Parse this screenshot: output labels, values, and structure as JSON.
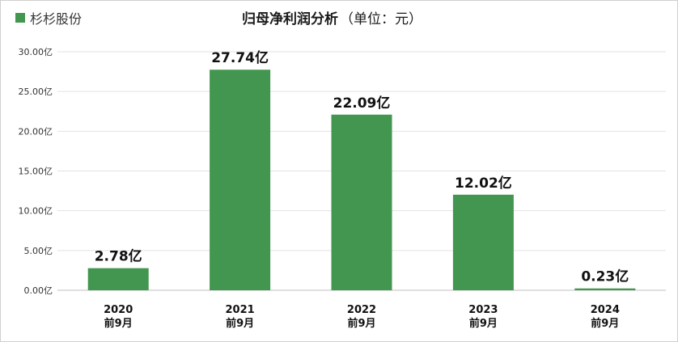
{
  "legend": {
    "label": "杉杉股份",
    "color": "#43964f"
  },
  "title": {
    "main": "归母净利润分析",
    "unit": "（单位：元）"
  },
  "chart_data": {
    "type": "bar",
    "title": "归母净利润分析（单位：元）",
    "categories": [
      "2020 前9月",
      "2021 前9月",
      "2022 前9月",
      "2023 前9月",
      "2024 前9月"
    ],
    "category_lines": [
      [
        "2020",
        "前9月"
      ],
      [
        "2021",
        "前9月"
      ],
      [
        "2022",
        "前9月"
      ],
      [
        "2023",
        "前9月"
      ],
      [
        "2024",
        "前9月"
      ]
    ],
    "series": [
      {
        "name": "杉杉股份",
        "values": [
          2.78,
          27.74,
          22.09,
          12.02,
          0.23
        ],
        "color": "#43964f"
      }
    ],
    "data_labels": [
      "2.78亿",
      "27.74亿",
      "22.09亿",
      "12.02亿",
      "0.23亿"
    ],
    "ylim": [
      0,
      30
    ],
    "yticks": [
      0,
      5,
      10,
      15,
      20,
      25,
      30
    ],
    "ytick_labels": [
      "0.00亿",
      "5.00亿",
      "10.00亿",
      "15.00亿",
      "20.00亿",
      "25.00亿",
      "30.00亿"
    ],
    "grid": true,
    "legend_position": "top-left"
  }
}
